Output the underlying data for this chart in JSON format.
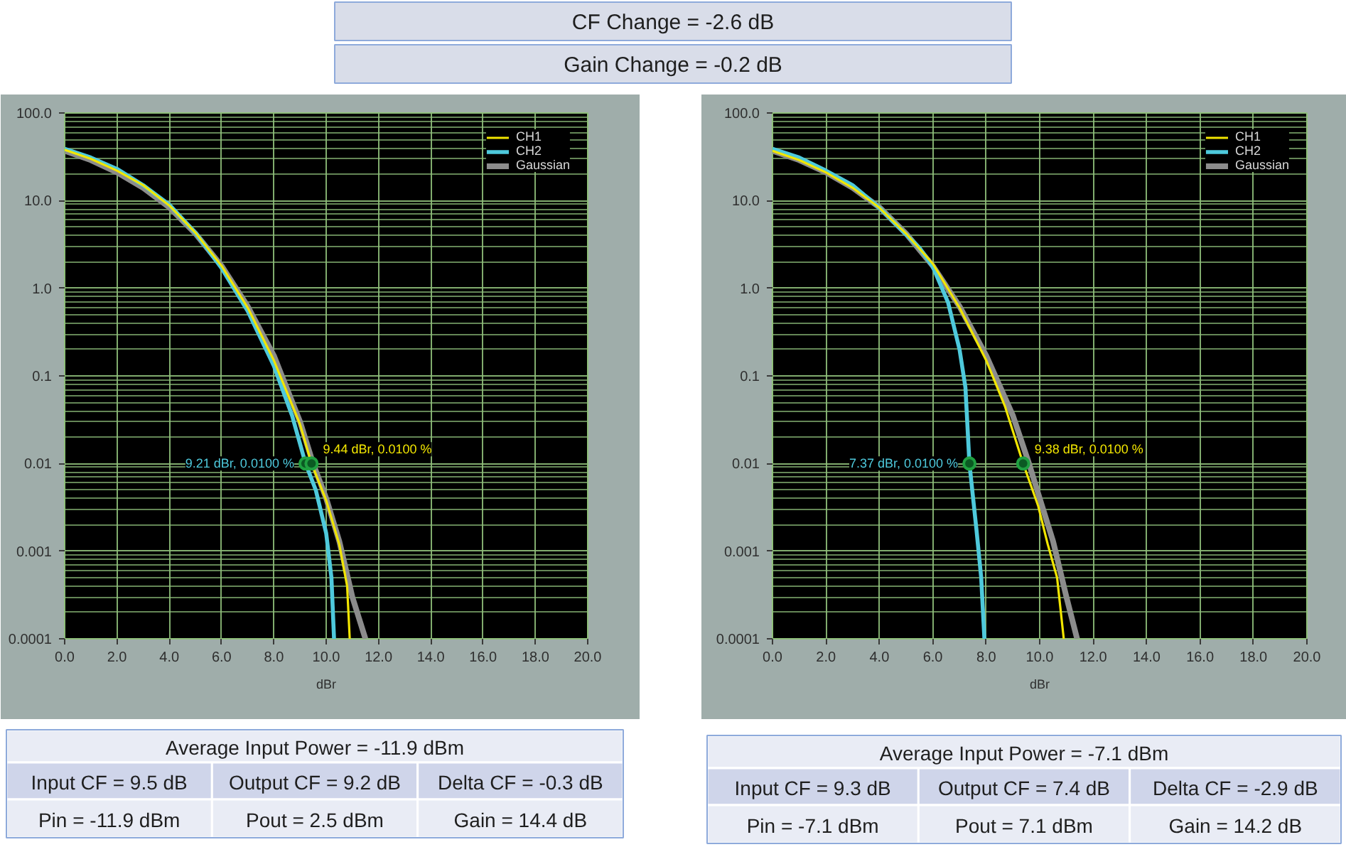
{
  "chart_data": [
    {
      "type": "other",
      "annotations": [
        "CF Change = -2.6 dB",
        "Gain Change = -0.2 dB"
      ]
    },
    {
      "type": "line",
      "xlabel": "dBr",
      "log": "y",
      "grid": true,
      "legend": "top right",
      "xlim": [
        0,
        20
      ],
      "xticks": [
        {
          "value": 0,
          "label": "0.0"
        },
        {
          "value": 2,
          "label": "2.0"
        },
        {
          "value": 4,
          "label": "4.0"
        },
        {
          "value": 6,
          "label": "6.0"
        },
        {
          "value": 8,
          "label": "8.0"
        },
        {
          "value": 10,
          "label": "10.0"
        },
        {
          "value": 12,
          "label": "12.0"
        },
        {
          "value": 14,
          "label": "14.0"
        },
        {
          "value": 16,
          "label": "16.0"
        },
        {
          "value": 18,
          "label": "18.0"
        },
        {
          "value": 20,
          "label": "20.0"
        }
      ],
      "ylim": [
        0.0001,
        100
      ],
      "yticks": [
        0.0001,
        {
          "value": 0.0002,
          "label": null
        },
        {
          "value": 0.0003,
          "label": null
        },
        {
          "value": 0.0004,
          "label": null
        },
        {
          "value": 0.0005,
          "label": null
        },
        {
          "value": 0.0006,
          "label": null
        },
        {
          "value": 0.0007,
          "label": null
        },
        {
          "value": 0.0008,
          "label": null
        },
        {
          "value": 0.0009,
          "label": null
        },
        0.001,
        {
          "value": 0.002,
          "label": null
        },
        {
          "value": 0.003,
          "label": null
        },
        {
          "value": 0.004,
          "label": null
        },
        {
          "value": 0.005,
          "label": null
        },
        {
          "value": 0.006,
          "label": null
        },
        {
          "value": 0.007,
          "label": null
        },
        {
          "value": 0.008,
          "label": null
        },
        {
          "value": 0.009,
          "label": null
        },
        0.01,
        {
          "value": 0.02,
          "label": null
        },
        {
          "value": 0.03,
          "label": null
        },
        {
          "value": 0.04,
          "label": null
        },
        {
          "value": 0.05,
          "label": null
        },
        {
          "value": 0.06,
          "label": null
        },
        {
          "value": 0.07,
          "label": null
        },
        {
          "value": 0.08,
          "label": null
        },
        {
          "value": 0.09,
          "label": null
        },
        0.1,
        {
          "value": 0.2,
          "label": null
        },
        {
          "value": 0.3,
          "label": null
        },
        {
          "value": 0.4,
          "label": null
        },
        {
          "value": 0.5,
          "label": null
        },
        {
          "value": 0.6,
          "label": null
        },
        {
          "value": 0.7,
          "label": null
        },
        {
          "value": 0.8,
          "label": null
        },
        {
          "value": 0.9,
          "label": null
        },
        {
          "value": 1,
          "label": "1.0"
        },
        {
          "value": 2,
          "label": null
        },
        {
          "value": 3,
          "label": null
        },
        {
          "value": 4,
          "label": null
        },
        {
          "value": 5,
          "label": null
        },
        {
          "value": 6,
          "label": null
        },
        {
          "value": 7,
          "label": null
        },
        {
          "value": 8,
          "label": null
        },
        {
          "value": 9,
          "label": null
        },
        {
          "value": 10,
          "label": "10.0"
        },
        {
          "value": 20,
          "label": null
        },
        {
          "value": 30,
          "label": null
        },
        {
          "value": 40,
          "label": null
        },
        {
          "value": 50,
          "label": null
        },
        {
          "value": 60,
          "label": null
        },
        {
          "value": 70,
          "label": null
        },
        {
          "value": 80,
          "label": null
        },
        {
          "value": 90,
          "label": null
        },
        {
          "value": 100,
          "label": "100.0"
        }
      ],
      "series": [
        {
          "name": "CH1",
          "color": "#f2e600",
          "x": [
            0,
            1,
            2,
            3,
            4,
            5,
            6,
            7,
            8,
            9,
            9.44,
            10,
            10.5,
            10.8,
            10.9
          ],
          "values": [
            38,
            30,
            22,
            15,
            8.8,
            4.3,
            1.8,
            0.6,
            0.15,
            0.028,
            0.01,
            0.0038,
            0.0012,
            0.0004,
            0.0001
          ]
        },
        {
          "name": "CH2",
          "color": "#4ec9dc",
          "x": [
            0,
            1,
            2,
            3,
            4,
            5,
            6,
            7,
            8,
            8.7,
            9.21,
            9.6,
            10.0,
            10.2,
            10.3
          ],
          "values": [
            39,
            31,
            23,
            15,
            9,
            4.3,
            1.7,
            0.55,
            0.13,
            0.035,
            0.01,
            0.005,
            0.0016,
            0.0005,
            0.0001
          ]
        },
        {
          "name": "Gaussian",
          "color": "#8c8c8c",
          "x": [
            0,
            1,
            2,
            3,
            4,
            5,
            6,
            7,
            8,
            9,
            9.5,
            10,
            10.5,
            11,
            11.5
          ],
          "values": [
            37,
            29,
            21,
            14,
            8.4,
            4.2,
            1.8,
            0.62,
            0.17,
            0.03,
            0.01,
            0.004,
            0.0013,
            0.0003,
            0.0001
          ]
        }
      ],
      "annotations": [
        {
          "text": "9.21 dBr, 0.0100 %",
          "x": 9.21,
          "y": 0.01
        },
        {
          "text": "9.44 dBr, 0.0100 %",
          "x": 9.44,
          "y": 0.01
        }
      ]
    },
    {
      "type": "line",
      "xlabel": "dBr",
      "log": "y",
      "grid": true,
      "legend": "top right",
      "xlim": [
        0,
        20
      ],
      "xticks": [
        {
          "value": 0,
          "label": "0.0"
        },
        {
          "value": 2,
          "label": "2.0"
        },
        {
          "value": 4,
          "label": "4.0"
        },
        {
          "value": 6,
          "label": "6.0"
        },
        {
          "value": 8,
          "label": "8.0"
        },
        {
          "value": 10,
          "label": "10.0"
        },
        {
          "value": 12,
          "label": "12.0"
        },
        {
          "value": 14,
          "label": "14.0"
        },
        {
          "value": 16,
          "label": "16.0"
        },
        {
          "value": 18,
          "label": "18.0"
        },
        {
          "value": 20,
          "label": "20.0"
        }
      ],
      "ylim": [
        0.0001,
        100
      ],
      "yticks": [
        0.0001,
        {
          "value": 0.0002,
          "label": null
        },
        {
          "value": 0.0003,
          "label": null
        },
        {
          "value": 0.0004,
          "label": null
        },
        {
          "value": 0.0005,
          "label": null
        },
        {
          "value": 0.0006,
          "label": null
        },
        {
          "value": 0.0007,
          "label": null
        },
        {
          "value": 0.0008,
          "label": null
        },
        {
          "value": 0.0009,
          "label": null
        },
        0.001,
        {
          "value": 0.002,
          "label": null
        },
        {
          "value": 0.003,
          "label": null
        },
        {
          "value": 0.004,
          "label": null
        },
        {
          "value": 0.005,
          "label": null
        },
        {
          "value": 0.006,
          "label": null
        },
        {
          "value": 0.007,
          "label": null
        },
        {
          "value": 0.008,
          "label": null
        },
        {
          "value": 0.009,
          "label": null
        },
        0.01,
        {
          "value": 0.02,
          "label": null
        },
        {
          "value": 0.03,
          "label": null
        },
        {
          "value": 0.04,
          "label": null
        },
        {
          "value": 0.05,
          "label": null
        },
        {
          "value": 0.06,
          "label": null
        },
        {
          "value": 0.07,
          "label": null
        },
        {
          "value": 0.08,
          "label": null
        },
        {
          "value": 0.09,
          "label": null
        },
        0.1,
        {
          "value": 0.2,
          "label": null
        },
        {
          "value": 0.3,
          "label": null
        },
        {
          "value": 0.4,
          "label": null
        },
        {
          "value": 0.5,
          "label": null
        },
        {
          "value": 0.6,
          "label": null
        },
        {
          "value": 0.7,
          "label": null
        },
        {
          "value": 0.8,
          "label": null
        },
        {
          "value": 0.9,
          "label": null
        },
        {
          "value": 1,
          "label": "1.0"
        },
        {
          "value": 2,
          "label": null
        },
        {
          "value": 3,
          "label": null
        },
        {
          "value": 4,
          "label": null
        },
        {
          "value": 5,
          "label": null
        },
        {
          "value": 6,
          "label": null
        },
        {
          "value": 7,
          "label": null
        },
        {
          "value": 8,
          "label": null
        },
        {
          "value": 9,
          "label": null
        },
        {
          "value": 10,
          "label": "10.0"
        },
        {
          "value": 20,
          "label": null
        },
        {
          "value": 30,
          "label": null
        },
        {
          "value": 40,
          "label": null
        },
        {
          "value": 50,
          "label": null
        },
        {
          "value": 60,
          "label": null
        },
        {
          "value": 70,
          "label": null
        },
        {
          "value": 80,
          "label": null
        },
        {
          "value": 90,
          "label": null
        },
        {
          "value": 100,
          "label": "100.0"
        }
      ],
      "series": [
        {
          "name": "CH1",
          "color": "#f2e600",
          "x": [
            0,
            1,
            2,
            3,
            4,
            5,
            6,
            7,
            8,
            8.7,
            9.38,
            9.94,
            10.3,
            10.65,
            10.9
          ],
          "values": [
            37,
            29,
            21,
            14,
            8.3,
            4.2,
            1.9,
            0.6,
            0.15,
            0.045,
            0.01,
            0.0033,
            0.0012,
            0.0005,
            0.0001
          ]
        },
        {
          "name": "CH2",
          "color": "#4ec9dc",
          "x": [
            0,
            1,
            2,
            3,
            4,
            5,
            5.5,
            6,
            6.57,
            7,
            7.22,
            7.37,
            7.63,
            7.81,
            7.93
          ],
          "values": [
            39,
            31,
            22,
            15,
            8.3,
            4.1,
            2.9,
            1.76,
            0.69,
            0.2,
            0.074,
            0.01,
            0.0018,
            0.0005,
            0.0001
          ]
        },
        {
          "name": "Gaussian",
          "color": "#8c8c8c",
          "x": [
            0,
            1,
            2,
            3,
            4,
            5,
            6,
            7,
            8,
            9,
            9.6,
            10,
            10.5,
            11,
            11.4
          ],
          "values": [
            37,
            29,
            21,
            14,
            8.4,
            4.2,
            1.8,
            0.62,
            0.17,
            0.035,
            0.01,
            0.004,
            0.0013,
            0.0003,
            0.0001
          ]
        }
      ],
      "annotations": [
        {
          "text": "7.37 dBr, 0.0100 %",
          "x": 7.37,
          "y": 0.01
        },
        {
          "text": "9.38 dBr, 0.0100 %",
          "x": 9.38,
          "y": 0.01
        }
      ]
    },
    {
      "type": "other",
      "title": "Average Input Power = -11.9 dBm",
      "annotations": [
        "Input CF = 9.5 dB",
        "Output CF = 9.2 dB",
        "Delta CF = -0.3 dB",
        "Pin = -11.9 dBm",
        "Pout = 2.5 dBm",
        "Gain = 14.4 dB"
      ]
    },
    {
      "type": "other",
      "title": "Average Input Power = -7.1 dBm",
      "annotations": [
        "Input CF = 9.3 dB",
        "Output CF = 7.4 dB",
        "Delta CF = -2.9 dB",
        "Pin = -7.1 dBm",
        "Pout = 7.1 dBm",
        "Gain = 14.2 dB"
      ]
    }
  ]
}
